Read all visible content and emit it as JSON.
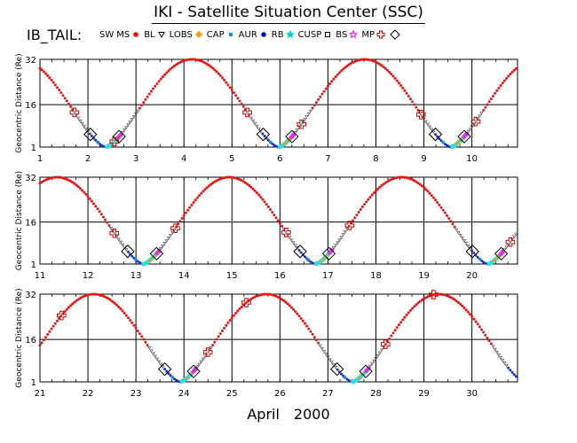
{
  "header": {
    "title": "IKI - Satellite Situation Center (SSC)",
    "legend_prefix": "IB_TAIL:"
  },
  "legend": [
    {
      "label": "SW",
      "marker": "none",
      "color": "#000000"
    },
    {
      "label": "MS",
      "marker": "dot",
      "color": "#ff0000"
    },
    {
      "label": "BL",
      "marker": "triangle",
      "color": "#000000"
    },
    {
      "label": "LOBS",
      "marker": "diamond",
      "color": "#ff9900"
    },
    {
      "label": "CAP",
      "marker": "square",
      "color": "#0099cc"
    },
    {
      "label": "AUR",
      "marker": "dot",
      "color": "#0000cc"
    },
    {
      "label": "RB",
      "marker": "star",
      "color": "#00cccc"
    },
    {
      "label": "CUSP",
      "marker": "square-open",
      "color": "#000000"
    },
    {
      "label": "BS",
      "marker": "star-open",
      "color": "#ff00ff"
    },
    {
      "label": "MP",
      "marker": "cross-open",
      "color": "#cc0000"
    },
    {
      "label": "",
      "marker": "diamond-open",
      "color": "#000000"
    }
  ],
  "footer": {
    "month": "April",
    "year": "2000"
  },
  "chart_data": {
    "type": "scatter",
    "ylabel": "Geocentric Distance (Re)",
    "y_ticks": [
      "32",
      "16",
      "1"
    ],
    "ylim": [
      1,
      32
    ],
    "orbit": {
      "period_days": 3.59,
      "apogee_re": 32,
      "perigee_re": 1,
      "perigee_days": [
        2.37,
        5.97,
        9.56,
        13.15,
        16.74,
        20.33,
        23.92,
        27.51,
        31.1
      ]
    },
    "panels": [
      {
        "xlim": [
          1,
          10.95
        ],
        "x_ticks": [
          1,
          2,
          3,
          4,
          5,
          6,
          7,
          8,
          9,
          10
        ],
        "mp_crossings": [
          1.72,
          2.55,
          5.32,
          6.45,
          8.94,
          10.08
        ],
        "apogees": [
          4.17,
          7.78
        ]
      },
      {
        "xlim": [
          11,
          20.95
        ],
        "x_ticks": [
          11,
          12,
          13,
          14,
          15,
          16,
          17,
          18,
          19,
          20
        ],
        "mp_crossings": [
          12.55,
          13.82,
          16.13,
          17.45,
          20.8
        ],
        "apogees": [
          11.2,
          14.95,
          18.54
        ]
      },
      {
        "xlim": [
          21,
          30.95
        ],
        "x_ticks": [
          21,
          22,
          23,
          24,
          25,
          26,
          27,
          28,
          29,
          30
        ],
        "mp_crossings": [
          21.45,
          24.5,
          25.3,
          28.2,
          29.2
        ],
        "apogees": [
          22.13,
          25.72,
          29.31
        ]
      }
    ]
  }
}
